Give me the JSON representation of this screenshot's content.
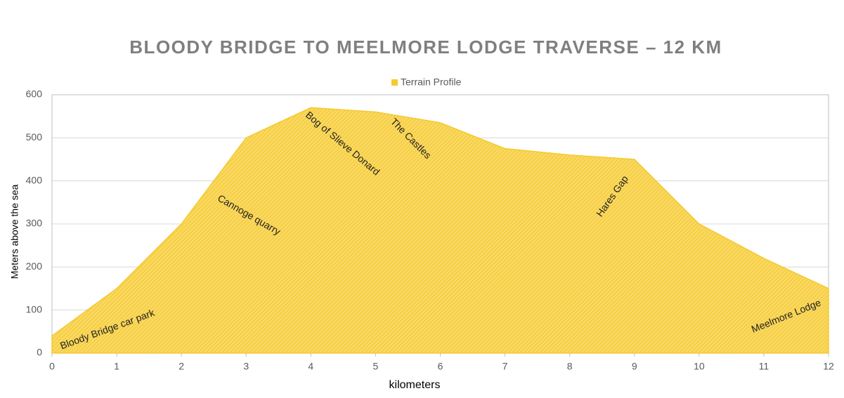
{
  "chart_data": {
    "type": "area",
    "title": "BLOODY BRIDGE TO MEELMORE LODGE TRAVERSE – 12 KM",
    "x_label": "kilometers",
    "y_label": "Meters above the sea",
    "x": [
      0,
      1,
      2,
      3,
      4,
      5,
      6,
      7,
      8,
      9,
      10,
      11,
      12
    ],
    "series": [
      {
        "name": "Terrain Profile",
        "color": "#f5c930",
        "values": [
          40,
          150,
          300,
          500,
          570,
          560,
          535,
          475,
          460,
          450,
          300,
          220,
          150
        ]
      }
    ],
    "xlim": [
      0,
      12
    ],
    "xticks": [
      0,
      1,
      2,
      3,
      4,
      5,
      6,
      7,
      8,
      9,
      10,
      11,
      12
    ],
    "ylim": [
      0,
      600
    ],
    "yticks": [
      0,
      100,
      200,
      300,
      400,
      500,
      600
    ],
    "grid": true,
    "legend": "top",
    "annotations": [
      "Bloody Bridge car park",
      "Cannoge quarry",
      "Bog of Slieve Donard",
      "The Castles",
      "Hares Gap",
      "Meelmore Lodge"
    ]
  }
}
